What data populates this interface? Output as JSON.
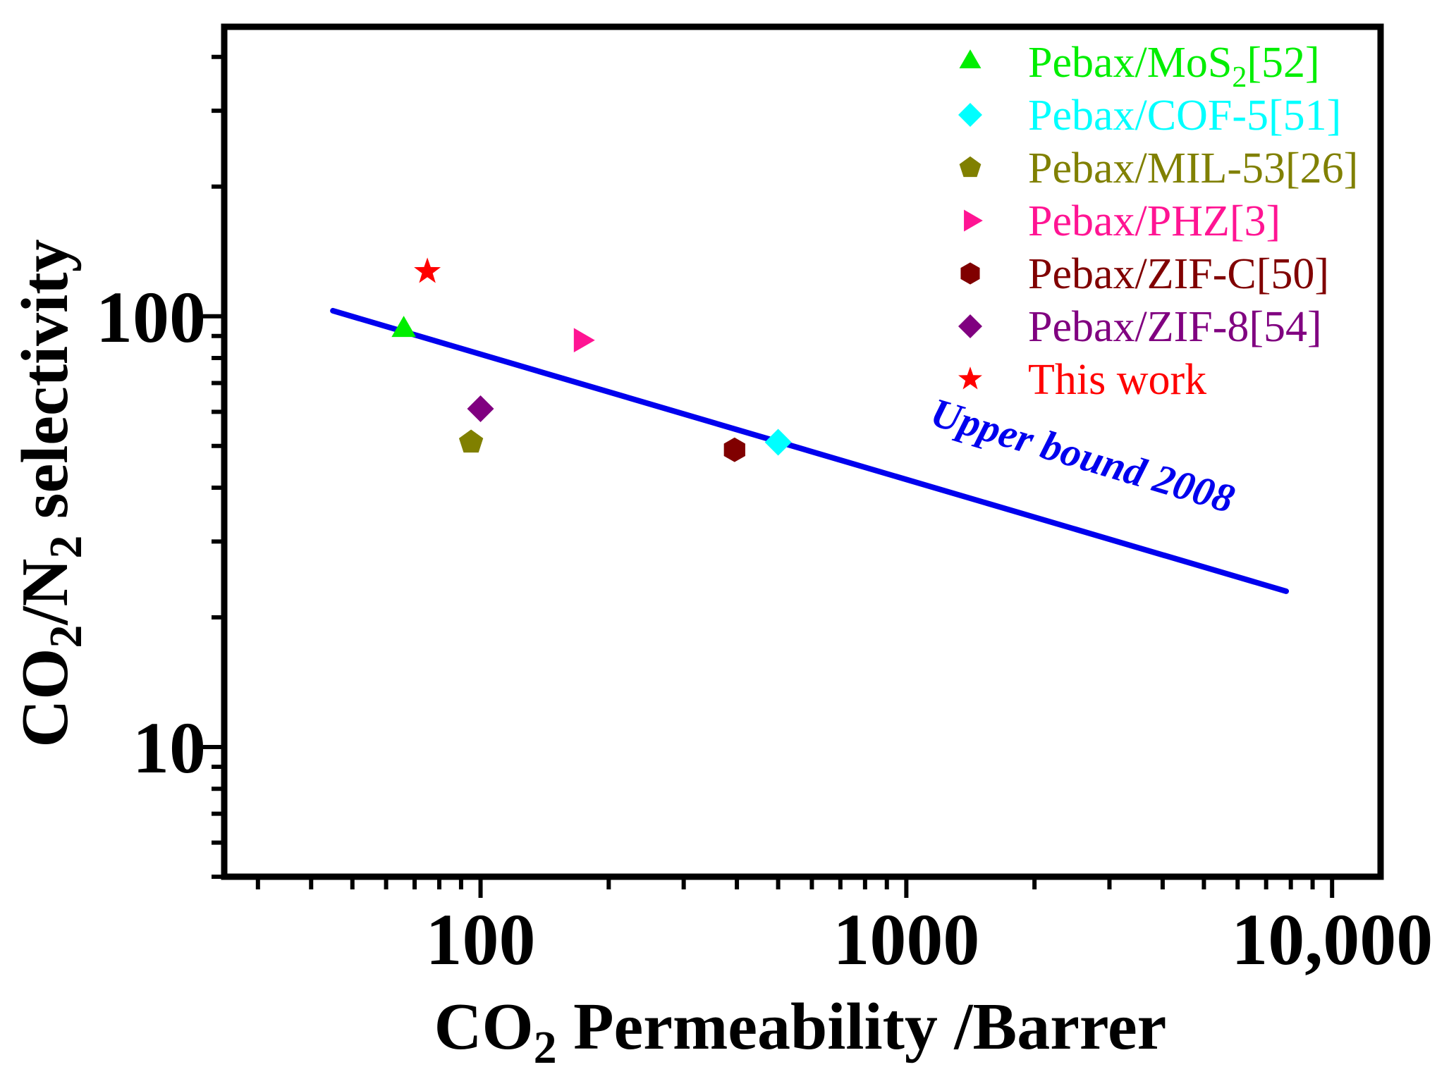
{
  "chart_data": {
    "type": "scatter",
    "title": "",
    "xlabel": {
      "main": "CO",
      "sub": "2",
      "rest": " Permeability /Barrer"
    },
    "ylabel": {
      "p1": "CO",
      "s1": "2",
      "p2": "/N",
      "s2": "2",
      "p3": " selectivity"
    },
    "xscale": "log",
    "yscale": "log",
    "xlim": [
      25,
      13000
    ],
    "ylim": [
      5,
      470
    ],
    "x_tick_labels": [
      {
        "value": 100,
        "label": "100"
      },
      {
        "value": 1000,
        "label": "1000"
      },
      {
        "value": 10000,
        "label": "10,000"
      }
    ],
    "y_tick_labels": [
      {
        "value": 10,
        "label": "10"
      },
      {
        "value": 100,
        "label": "100"
      }
    ],
    "series": [
      {
        "name": "Pebax/MoS2[52]",
        "legend": {
          "main": "Pebax/MoS",
          "sub": "2",
          "rest": "[52]"
        },
        "marker": "triangle-up",
        "color": "#00ee00",
        "x": [
          66
        ],
        "y": [
          93
        ]
      },
      {
        "name": "Pebax/COF-5[51]",
        "legend": {
          "main": "Pebax/COF-5[51]"
        },
        "marker": "diamond",
        "color": "#00ffff",
        "x": [
          500
        ],
        "y": [
          51
        ]
      },
      {
        "name": "Pebax/MIL-53[26]",
        "legend": {
          "main": "Pebax/MIL-53[26]"
        },
        "marker": "pentagon",
        "color": "#808000",
        "x": [
          95
        ],
        "y": [
          51
        ]
      },
      {
        "name": "Pebax/PHZ[3]",
        "legend": {
          "main": "Pebax/PHZ[3]"
        },
        "marker": "triangle-right",
        "color": "#ff1493",
        "x": [
          172
        ],
        "y": [
          88
        ]
      },
      {
        "name": "Pebax/ZIF-C[50]",
        "legend": {
          "main": "Pebax/ZIF-C[50]"
        },
        "marker": "hexagon",
        "color": "#800000",
        "x": [
          395
        ],
        "y": [
          49
        ]
      },
      {
        "name": "Pebax/ZIF-8[54]",
        "legend": {
          "main": "Pebax/ZIF-8[54]"
        },
        "marker": "diamond",
        "color": "#800080",
        "x": [
          100
        ],
        "y": [
          61
        ]
      },
      {
        "name": "This work",
        "legend": {
          "main": "This work"
        },
        "marker": "star",
        "color": "#ff0000",
        "x": [
          75
        ],
        "y": [
          127
        ]
      }
    ],
    "upper_bound": {
      "label": "Upper bound 2008",
      "color": "#0000ee",
      "x": [
        45,
        7800
      ],
      "y": [
        103,
        23
      ]
    },
    "legend_position": "top-right"
  }
}
